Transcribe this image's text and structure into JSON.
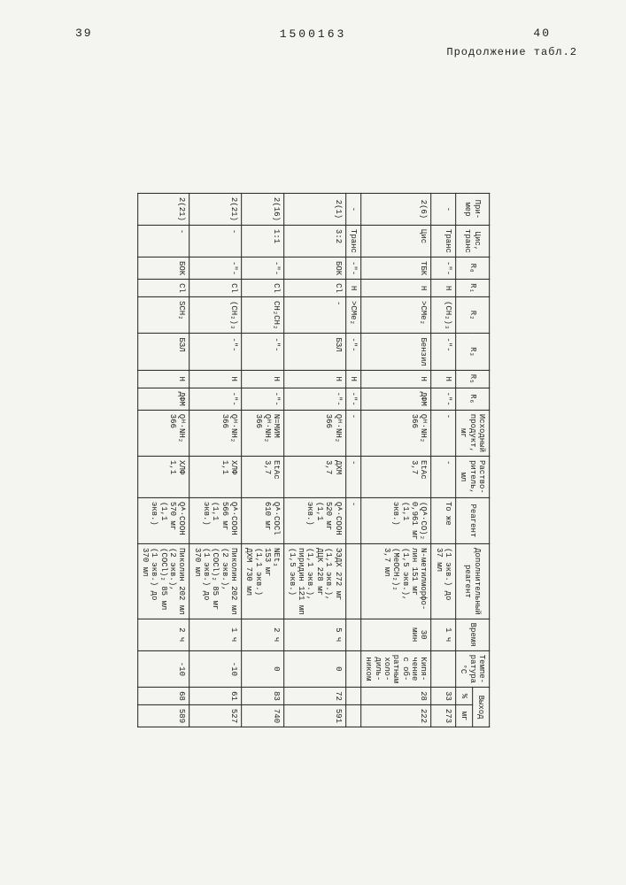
{
  "page_left": "39",
  "page_right": "40",
  "doc_number": "1500163",
  "caption": "Продолжение табл.2",
  "headers": {
    "primer": "При-\nмер",
    "cis_trans": "Цис,\nтранс",
    "r0": "R₀",
    "r1": "R₁",
    "r2": "R₂",
    "r3": "R₃",
    "r5": "R₅",
    "r6": "R₆",
    "ishod": "Исходный\nпродукт,\nмг",
    "rastv": "Раство-\nритель,\nмл",
    "reagent": "Реагент",
    "dop": "Дополнительный\nреагент",
    "vremya": "Время",
    "temp": "Темпе-\nратура\n°C",
    "vyhod": "Выход",
    "vyhod_pct": "%",
    "vyhod_mg": "мг"
  },
  "rows": [
    {
      "primer": "-",
      "ct": "Транс",
      "r0": "-\"-",
      "r1": "H",
      "r2": "(CH₂)₃",
      "r3": "-\"-",
      "r5": "H",
      "r6": "-\"-",
      "ish": "-",
      "rast": "-",
      "reag": "То же",
      "dop": "(1 экв.) до\n37 мл",
      "vrem": "1 ч",
      "temp": "",
      "pct": "33",
      "mg": "273"
    },
    {
      "primer": "2(6)",
      "ct": "Цис",
      "r0": "ТБК",
      "r1": "H",
      "r2": ">CMe₂",
      "r3": "Бензил",
      "r5": "H",
      "r6": "ДФМ",
      "ish": "Qᴴ·NH₂\n366",
      "rast": "EtAc\n3,7",
      "reag": "(Qᴬ·CO)₂\n0,961 мг\n(1,1 экв.)",
      "dop": "N-метилморфо-\nлин 151 мг\n(1,5 экв.),\n(MeOCH₂)₂\n3,7 мл",
      "vrem": "30 мин",
      "temp": "Кипя-\nчение\nс об-\nратным\nхоло-\nдиль-\nником",
      "pct": "28",
      "mg": "222"
    },
    {
      "primer": "-",
      "ct": "Транс",
      "r0": "-\"-",
      "r1": "H",
      "r2": ">CMe₂",
      "r3": "-\"-",
      "r5": "H",
      "r6": "-\"-",
      "ish": "-",
      "rast": "-",
      "reag": "-",
      "dop": "",
      "vrem": "",
      "temp": "",
      "pct": "",
      "mg": ""
    },
    {
      "primer": "2(1)",
      "ct": "3:2",
      "r0": "БОК",
      "r1": "Cl",
      "r2": "-",
      "r3": "БЗЛ",
      "r5": "H",
      "r6": "-\"-",
      "ish": "Qᴴ·NH₂\n366",
      "rast": "ДХМ\n3,7",
      "reag": "Qᴬ·COOH\n520 мг\n(1,1 экв.)",
      "dop": "ЭЭДХ 272 мг\n(1,1 экв.),\nДЦК 228 мг\n(1,1 экв.),\nпиридин 121 мп\n(1,5 экв.)",
      "vrem": "5 ч",
      "temp": "0",
      "pct": "72",
      "mg": "591"
    },
    {
      "primer": "2(16)",
      "ct": "1:1",
      "r0": "-\"-",
      "r1": "Cl",
      "r2": "CH₂CH₂",
      "r3": "-\"-",
      "r5": "H",
      "r6": "-\"-",
      "ish": "N=МИМ\nQᴴ·NH₂\n366",
      "rast": "EtAc\n3,7",
      "reag": "Qᴬ·COCl\n610 мг",
      "dop": "NEt₃\n153 мг\n(1,1 экв.)\nДХМ 730 мл",
      "vrem": "2 ч",
      "temp": "0",
      "pct": "83",
      "mg": "740"
    },
    {
      "primer": "2(21)",
      "ct": "-",
      "r0": "-\"-",
      "r1": "Cl",
      "r2": "(CH₂)₃",
      "r3": "-\"-",
      "r5": "H",
      "r6": "-\"-",
      "ish": "Qᴴ·NH₂\n366",
      "rast": "ХЛФ\n1,1",
      "reag": "Qᴬ·COOH\n566 мг\n(1,1 экв.)",
      "dop": "Пиколин 202 мл\n(2 экв.),\n(COCl)₂ 85 мг\n(1 экв.) до\n370 мл",
      "vrem": "1 ч",
      "temp": "-10",
      "pct": "61",
      "mg": "527"
    },
    {
      "primer": "2(21)",
      "ct": "-",
      "r0": "БОК",
      "r1": "Cl",
      "r2": "SCH₂",
      "r3": "БЗЛ",
      "r5": "H",
      "r6": "ДФМ",
      "ish": "Qᴴ·NH₂\n366",
      "rast": "ХЛФ\n1,1",
      "reag": "Qᴬ·COOH\n570 мг\n(1,1 экв.)",
      "dop": "Пиколин 202 мл\n(2 экв.),\n(COCl)₂ 85 мл\n(1 экв.) до\n370 мл",
      "vrem": "2 ч",
      "temp": "-10",
      "pct": "68",
      "mg": "589"
    }
  ]
}
